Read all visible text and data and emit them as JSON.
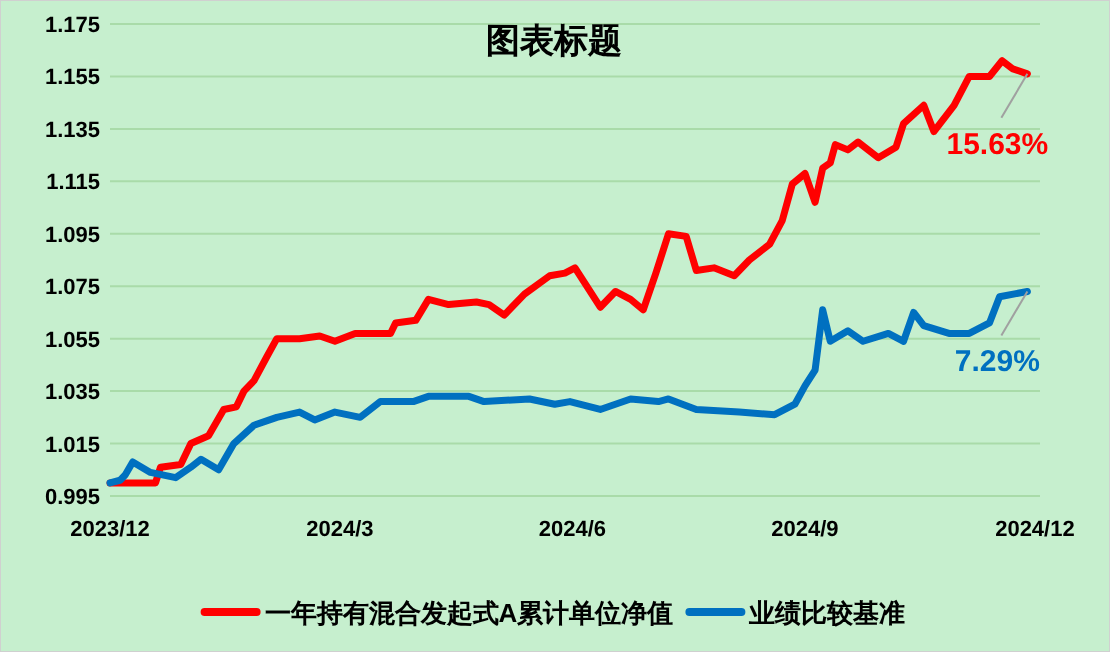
{
  "chart_data": {
    "type": "line",
    "title": "图表标题",
    "xlim": [
      "2023-12-01",
      "2024-12-03"
    ],
    "xticks": [
      {
        "value": "2023-12-01",
        "label": "2023/12"
      },
      {
        "value": "2024-03-01",
        "label": "2024/3"
      },
      {
        "value": "2024-06-01",
        "label": "2024/6"
      },
      {
        "value": "2024-09-01",
        "label": "2024/9"
      },
      {
        "value": "2024-12-01",
        "label": "2024/12"
      }
    ],
    "ylim": [
      0.995,
      1.175
    ],
    "yticks": [
      0.995,
      1.015,
      1.035,
      1.055,
      1.075,
      1.095,
      1.115,
      1.135,
      1.155,
      1.175
    ],
    "grid": "y",
    "legend": "bottom",
    "marker": "none",
    "line_style": "solid",
    "series": [
      {
        "name": "一年持有混合发起式A累计单位净值",
        "color": "#ff0000",
        "x": [
          "2023-12-01",
          "2023-12-19",
          "2023-12-21",
          "2023-12-29",
          "2024-01-02",
          "2024-01-09",
          "2024-01-15",
          "2024-01-20",
          "2024-01-23",
          "2024-01-27",
          "2024-02-01",
          "2024-02-05",
          "2024-02-14",
          "2024-02-22",
          "2024-02-28",
          "2024-03-07",
          "2024-03-21",
          "2024-03-23",
          "2024-03-31",
          "2024-04-05",
          "2024-04-13",
          "2024-04-24",
          "2024-04-29",
          "2024-05-05",
          "2024-05-13",
          "2024-05-23",
          "2024-05-29",
          "2024-06-02",
          "2024-06-12",
          "2024-06-18",
          "2024-06-24",
          "2024-06-29",
          "2024-07-04",
          "2024-07-09",
          "2024-07-16",
          "2024-07-20",
          "2024-07-27",
          "2024-08-04",
          "2024-08-10",
          "2024-08-18",
          "2024-08-23",
          "2024-08-27",
          "2024-09-01",
          "2024-09-05",
          "2024-09-08",
          "2024-09-11",
          "2024-09-13",
          "2024-09-18",
          "2024-09-22",
          "2024-09-30",
          "2024-10-07",
          "2024-10-10",
          "2024-10-18",
          "2024-10-22",
          "2024-10-30",
          "2024-11-05",
          "2024-11-13",
          "2024-11-18",
          "2024-11-22",
          "2024-11-28"
        ],
        "values": [
          1.0,
          1.0,
          1.006,
          1.007,
          1.015,
          1.018,
          1.028,
          1.029,
          1.035,
          1.039,
          1.048,
          1.055,
          1.055,
          1.056,
          1.054,
          1.057,
          1.057,
          1.061,
          1.062,
          1.07,
          1.068,
          1.069,
          1.068,
          1.064,
          1.072,
          1.079,
          1.08,
          1.082,
          1.067,
          1.073,
          1.07,
          1.066,
          1.08,
          1.095,
          1.094,
          1.081,
          1.082,
          1.079,
          1.085,
          1.091,
          1.1,
          1.114,
          1.118,
          1.107,
          1.12,
          1.122,
          1.129,
          1.127,
          1.13,
          1.124,
          1.128,
          1.137,
          1.144,
          1.134,
          1.144,
          1.155,
          1.155,
          1.161,
          1.158,
          1.156
        ]
      },
      {
        "name": "业绩比较基准",
        "color": "#0070c0",
        "x": [
          "2023-12-01",
          "2023-12-05",
          "2023-12-07",
          "2023-12-10",
          "2023-12-17",
          "2023-12-27",
          "2024-01-02",
          "2024-01-06",
          "2024-01-13",
          "2024-01-19",
          "2024-01-27",
          "2024-02-05",
          "2024-02-14",
          "2024-02-20",
          "2024-02-28",
          "2024-03-09",
          "2024-03-17",
          "2024-03-30",
          "2024-04-05",
          "2024-04-21",
          "2024-04-27",
          "2024-05-15",
          "2024-05-25",
          "2024-05-31",
          "2024-06-12",
          "2024-06-24",
          "2024-07-05",
          "2024-07-09",
          "2024-07-20",
          "2024-08-06",
          "2024-08-20",
          "2024-08-28",
          "2024-09-01",
          "2024-09-05",
          "2024-09-08",
          "2024-09-11",
          "2024-09-18",
          "2024-09-24",
          "2024-10-04",
          "2024-10-10",
          "2024-10-14",
          "2024-10-18",
          "2024-10-28",
          "2024-11-05",
          "2024-11-13",
          "2024-11-17",
          "2024-11-28"
        ],
        "values": [
          1.0,
          1.001,
          1.003,
          1.008,
          1.004,
          1.002,
          1.006,
          1.009,
          1.005,
          1.015,
          1.022,
          1.025,
          1.027,
          1.024,
          1.027,
          1.025,
          1.031,
          1.031,
          1.033,
          1.033,
          1.031,
          1.032,
          1.03,
          1.031,
          1.028,
          1.032,
          1.031,
          1.032,
          1.028,
          1.027,
          1.026,
          1.03,
          1.037,
          1.043,
          1.066,
          1.054,
          1.058,
          1.054,
          1.057,
          1.054,
          1.065,
          1.06,
          1.057,
          1.057,
          1.061,
          1.071,
          1.073
        ]
      }
    ],
    "annotations": [
      {
        "text": "15.63%",
        "x": "2024-11-28",
        "y": 1.156
      },
      {
        "text": "7.29%",
        "x": "2024-11-28",
        "y": 1.073
      }
    ]
  }
}
